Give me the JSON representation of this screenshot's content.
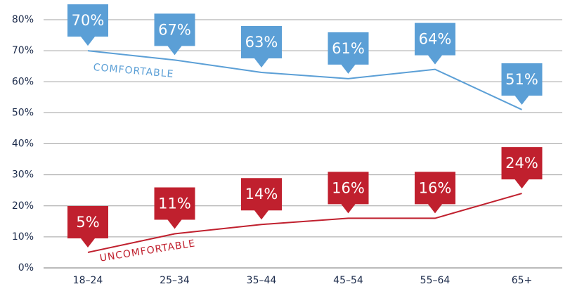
{
  "chart_data": {
    "type": "line",
    "categories": [
      "18–24",
      "25–34",
      "35–44",
      "45–54",
      "55–64",
      "65+"
    ],
    "series": [
      {
        "name": "COMFORTABLE",
        "color": "#5b9fd6",
        "values": [
          70,
          67,
          63,
          61,
          64,
          51
        ],
        "value_labels": [
          "70%",
          "67%",
          "63%",
          "61%",
          "64%",
          "51%"
        ]
      },
      {
        "name": "UNCOMFORTABLE",
        "color": "#c0202e",
        "values": [
          5,
          11,
          14,
          16,
          16,
          24
        ],
        "value_labels": [
          "5%",
          "11%",
          "14%",
          "16%",
          "16%",
          "24%"
        ]
      }
    ],
    "ylim": [
      0,
      80
    ],
    "yticks": [
      {
        "value": 0,
        "label": "0%"
      },
      {
        "value": 10,
        "label": "10%"
      },
      {
        "value": 20,
        "label": "20%"
      },
      {
        "value": 30,
        "label": "30%"
      },
      {
        "value": 40,
        "label": "40%"
      },
      {
        "value": 50,
        "label": "50%"
      },
      {
        "value": 60,
        "label": "60%"
      },
      {
        "value": 70,
        "label": "70%"
      },
      {
        "value": 80,
        "label": "80%"
      }
    ],
    "grid": true
  }
}
